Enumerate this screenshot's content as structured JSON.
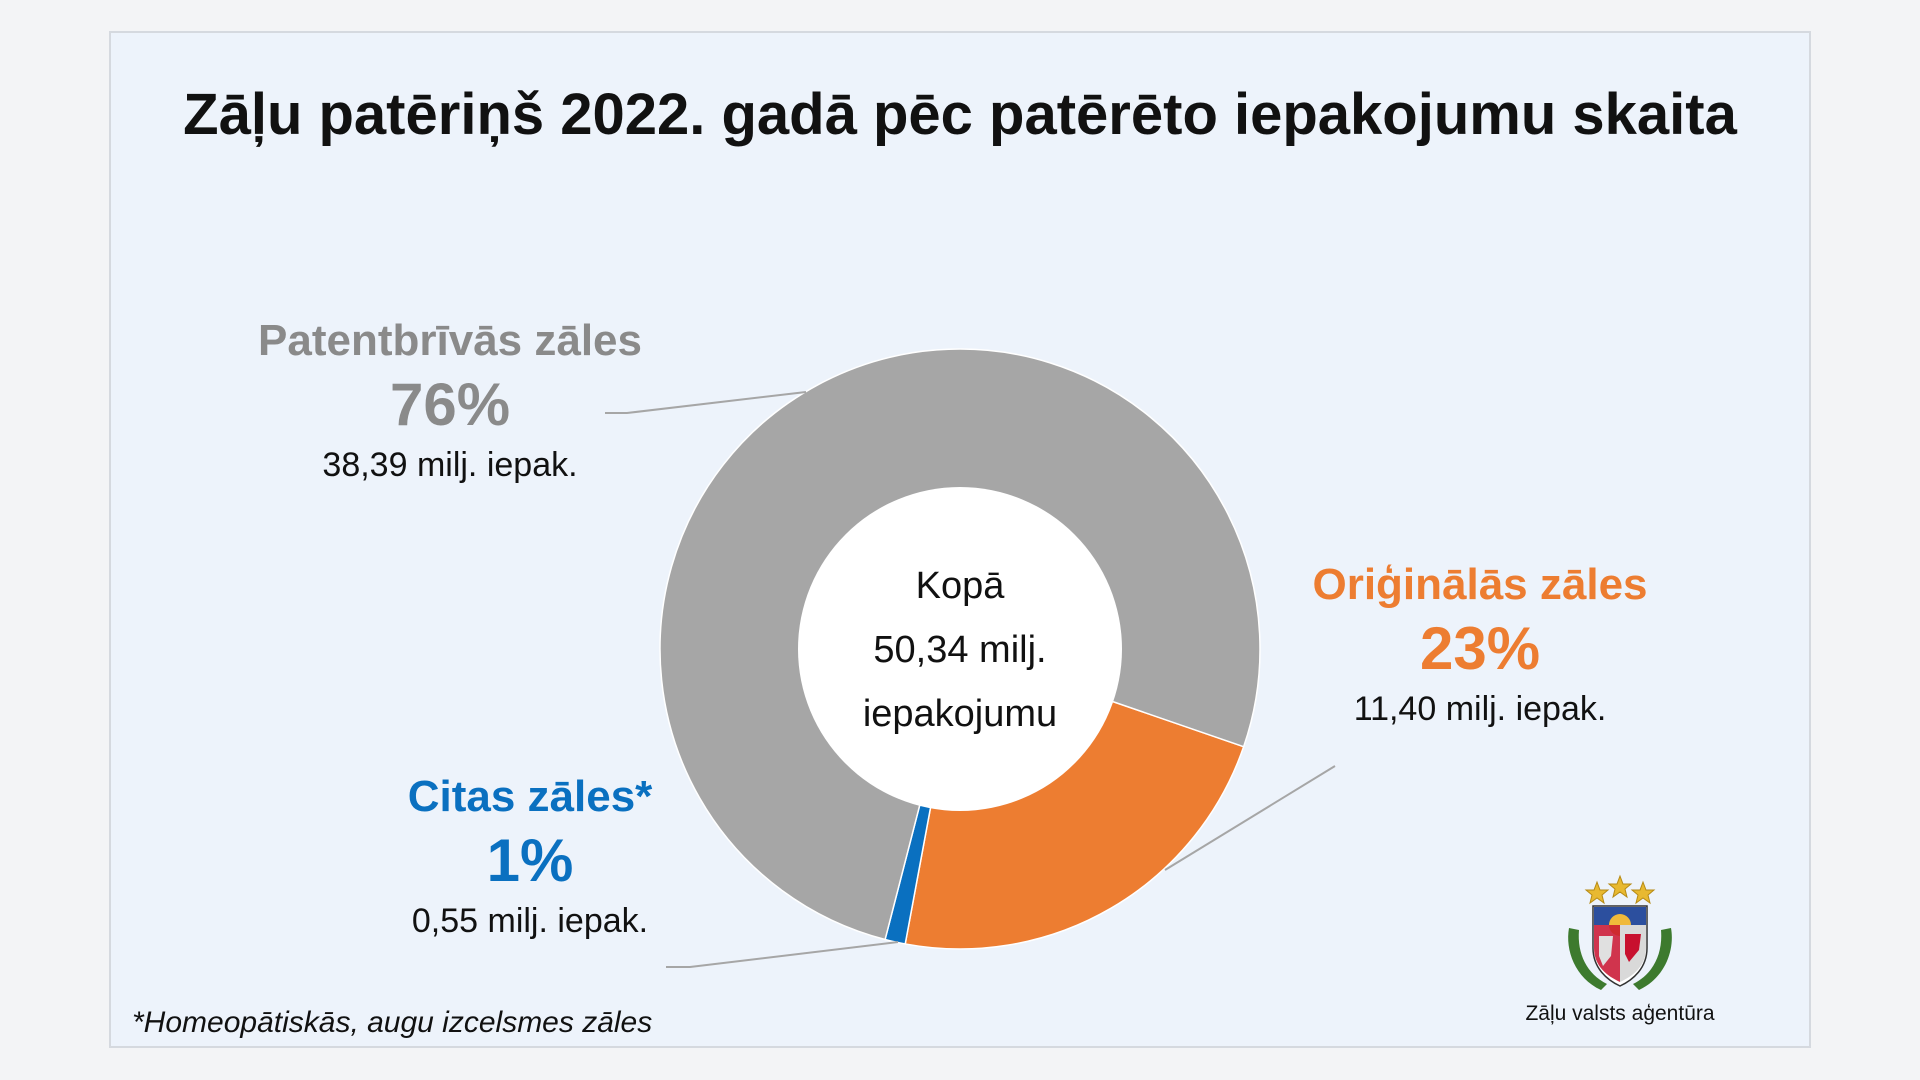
{
  "chart_data": {
    "type": "pie",
    "donut": true,
    "title": "Zāļu patēriņš 2022. gadā pēc patērēto iepakojumu skaita",
    "center_label": [
      "Kopā",
      "50,34 milj.",
      "iepakojumu"
    ],
    "slices": [
      {
        "name": "Oriģinālās zāles",
        "percent_label": "23%",
        "value": 11.4,
        "value_label": "11,40 milj. iepak.",
        "color": "#ed7d31"
      },
      {
        "name": "Citas zāles*",
        "percent_label": "1%",
        "value": 0.55,
        "value_label": "0,55 milj. iepak.",
        "color": "#0a70c0"
      },
      {
        "name": "Patentbrīvās zāles",
        "percent_label": "76%",
        "value": 38.39,
        "value_label": "38,39 milj. iepak.",
        "color": "#a6a6a6"
      }
    ],
    "legend": "none"
  },
  "footnote": "*Homeopātiskās, augu izcelsmes zāles",
  "agency": {
    "name": "Zāļu valsts aģentūra",
    "logo_icon": "latvia-coat-of-arms-icon"
  },
  "colors": {
    "background": "#edf3fb",
    "generic_label": "#8a8a8a"
  }
}
